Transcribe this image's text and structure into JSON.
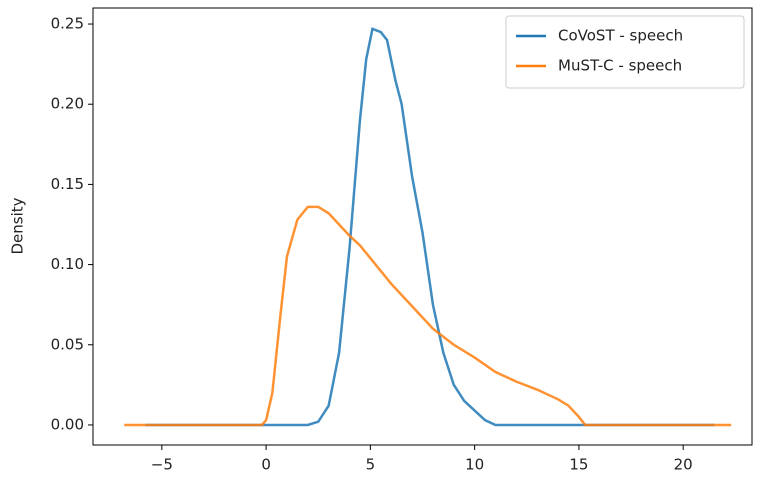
{
  "chart_data": {
    "type": "line",
    "y_label": "Density",
    "xlim": [
      -8.3,
      23.3
    ],
    "ylim": [
      -0.0125,
      0.26
    ],
    "xticks": [
      {
        "value": -5,
        "label": "−5"
      },
      0,
      5,
      10,
      15,
      20
    ],
    "yticks": [
      {
        "value": 0,
        "label": "0.00"
      },
      {
        "value": 0.05,
        "label": "0.05"
      },
      {
        "value": 0.1,
        "label": "0.10"
      },
      {
        "value": 0.15,
        "label": "0.15"
      },
      {
        "value": 0.2,
        "label": "0.20"
      },
      {
        "value": 0.25,
        "label": "0.25"
      }
    ],
    "legend": "upper right",
    "grid": false,
    "series": [
      {
        "name": "CoVoST - speech",
        "color": "#1f77b4",
        "x": [
          -5.8,
          2,
          2.5,
          3,
          3.5,
          4,
          4.5,
          4.8,
          5.1,
          5.5,
          5.8,
          6.2,
          6.5,
          7,
          7.5,
          8,
          8.5,
          9,
          9.5,
          10,
          10.5,
          11,
          21.5
        ],
        "values": [
          0,
          0,
          0.002,
          0.012,
          0.045,
          0.11,
          0.19,
          0.228,
          0.247,
          0.245,
          0.24,
          0.215,
          0.2,
          0.155,
          0.12,
          0.075,
          0.045,
          0.025,
          0.015,
          0.009,
          0.003,
          0,
          0
        ]
      },
      {
        "name": "MuST-C - speech",
        "color": "#ff7f0e",
        "x": [
          -6.8,
          -0.2,
          0,
          0.3,
          0.7,
          1,
          1.5,
          2,
          2.5,
          3,
          3.5,
          4,
          4.5,
          5,
          6,
          7,
          8,
          9,
          10,
          11,
          12,
          13,
          14,
          14.5,
          15,
          15.3,
          22.3
        ],
        "values": [
          0,
          0,
          0.003,
          0.02,
          0.07,
          0.105,
          0.128,
          0.136,
          0.136,
          0.132,
          0.125,
          0.118,
          0.112,
          0.104,
          0.088,
          0.074,
          0.06,
          0.05,
          0.042,
          0.033,
          0.027,
          0.022,
          0.016,
          0.012,
          0.005,
          0,
          0
        ]
      }
    ]
  }
}
